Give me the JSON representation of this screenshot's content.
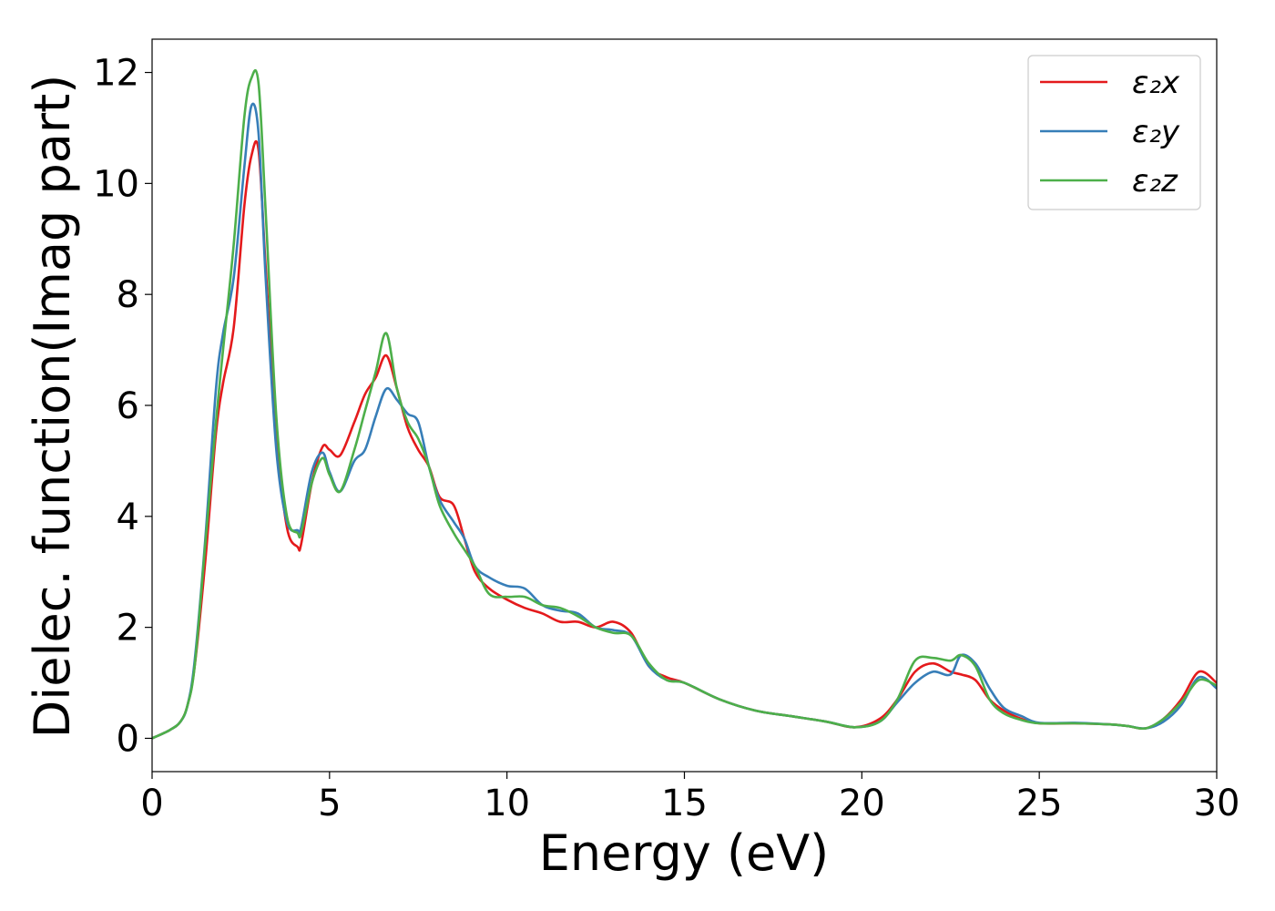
{
  "chart_data": {
    "type": "line",
    "xlabel": "Energy (eV)",
    "ylabel": "Dielec. function(Imag part)",
    "xlim": [
      0,
      30
    ],
    "ylim": [
      -0.6,
      12.6
    ],
    "xticks": [
      0,
      5,
      10,
      15,
      20,
      25,
      30
    ],
    "yticks": [
      0,
      2,
      4,
      6,
      8,
      10,
      12
    ],
    "grid": false,
    "legend_position": "top-right",
    "x": [
      0,
      0.5,
      0.8,
      1.0,
      1.2,
      1.5,
      1.8,
      2.0,
      2.3,
      2.6,
      2.8,
      3.0,
      3.2,
      3.5,
      3.8,
      4.1,
      4.2,
      4.5,
      4.8,
      5.0,
      5.3,
      5.7,
      6.0,
      6.3,
      6.6,
      6.9,
      7.2,
      7.5,
      7.8,
      8.1,
      8.5,
      8.8,
      9.1,
      9.5,
      10.0,
      10.5,
      11.0,
      11.5,
      12.0,
      12.5,
      13.0,
      13.5,
      14.0,
      14.5,
      15.0,
      16.0,
      17.0,
      18.0,
      19.0,
      19.8,
      20.5,
      21.0,
      21.5,
      22.0,
      22.5,
      22.8,
      23.2,
      23.6,
      24.0,
      24.5,
      25.0,
      26.0,
      27.0,
      27.5,
      28.0,
      28.5,
      29.0,
      29.5,
      30.0
    ],
    "series": [
      {
        "name": "ε₂x",
        "color": "#e41a1c",
        "values": [
          0,
          0.15,
          0.3,
          0.6,
          1.3,
          3.2,
          5.5,
          6.4,
          7.4,
          9.6,
          10.5,
          10.6,
          8.5,
          5.5,
          3.8,
          3.45,
          3.5,
          4.6,
          5.25,
          5.2,
          5.1,
          5.7,
          6.2,
          6.5,
          6.9,
          6.3,
          5.6,
          5.2,
          4.9,
          4.35,
          4.2,
          3.6,
          3.0,
          2.7,
          2.5,
          2.35,
          2.25,
          2.1,
          2.1,
          2.0,
          2.1,
          1.9,
          1.3,
          1.1,
          1.0,
          0.7,
          0.5,
          0.4,
          0.3,
          0.2,
          0.35,
          0.7,
          1.2,
          1.35,
          1.2,
          1.15,
          1.05,
          0.7,
          0.5,
          0.35,
          0.27,
          0.27,
          0.25,
          0.22,
          0.18,
          0.35,
          0.7,
          1.2,
          1.0
        ]
      },
      {
        "name": "ε₂y",
        "color": "#377eb8",
        "values": [
          0,
          0.15,
          0.3,
          0.6,
          1.4,
          3.6,
          6.3,
          7.3,
          8.3,
          10.3,
          11.4,
          10.9,
          8.3,
          5.2,
          3.9,
          3.75,
          3.8,
          4.8,
          5.15,
          4.8,
          4.45,
          5.0,
          5.2,
          5.8,
          6.3,
          6.1,
          5.85,
          5.7,
          4.9,
          4.3,
          3.9,
          3.6,
          3.1,
          2.9,
          2.75,
          2.7,
          2.4,
          2.3,
          2.25,
          2.0,
          1.95,
          1.85,
          1.3,
          1.05,
          1.0,
          0.7,
          0.5,
          0.4,
          0.3,
          0.2,
          0.3,
          0.65,
          1.0,
          1.2,
          1.15,
          1.5,
          1.35,
          0.9,
          0.55,
          0.4,
          0.28,
          0.28,
          0.25,
          0.22,
          0.18,
          0.3,
          0.6,
          1.1,
          0.9
        ]
      },
      {
        "name": "ε₂z",
        "color": "#4daf4a",
        "values": [
          0,
          0.15,
          0.3,
          0.6,
          1.3,
          3.5,
          5.7,
          7.0,
          8.9,
          11.2,
          11.9,
          11.8,
          9.5,
          5.8,
          4.0,
          3.7,
          3.7,
          4.6,
          5.05,
          4.75,
          4.45,
          5.2,
          5.9,
          6.6,
          7.3,
          6.3,
          5.7,
          5.4,
          4.9,
          4.2,
          3.7,
          3.4,
          3.1,
          2.6,
          2.55,
          2.55,
          2.4,
          2.35,
          2.2,
          2.0,
          1.9,
          1.85,
          1.35,
          1.05,
          1.0,
          0.7,
          0.5,
          0.4,
          0.3,
          0.2,
          0.3,
          0.7,
          1.4,
          1.45,
          1.4,
          1.5,
          1.3,
          0.7,
          0.45,
          0.33,
          0.27,
          0.27,
          0.25,
          0.22,
          0.18,
          0.35,
          0.65,
          1.05,
          0.95
        ]
      }
    ]
  }
}
